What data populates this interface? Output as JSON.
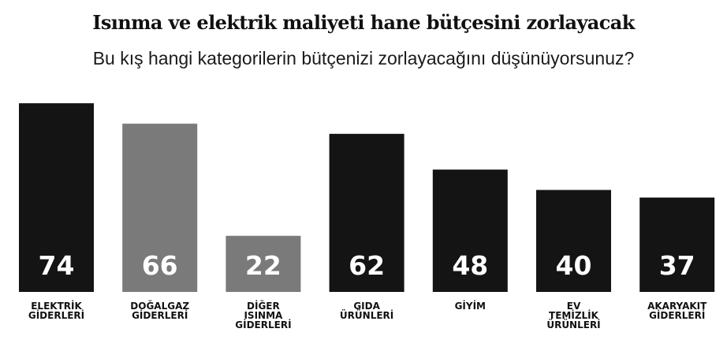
{
  "chart_data": {
    "type": "bar",
    "title": "Isınma ve elektrik maliyeti hane bütçesini zorlayacak",
    "subtitle": "Bu kış hangi kategorilerin bütçenizi zorlayacağını düşünüyorsunuz?",
    "categories": [
      [
        "ELEKTRİK",
        "GİDERLERİ"
      ],
      [
        "DOĞALGAZ",
        "GİDERLERİ"
      ],
      [
        "DİĞER",
        "ISINMA",
        "GİDERLERİ"
      ],
      [
        "GIDA",
        "ÜRÜNLERİ"
      ],
      [
        "GİYİM"
      ],
      [
        "EV",
        "TEMİZLİK",
        "ÜRÜNLERİ"
      ],
      [
        "AKARYAKIT",
        "GİDERLERİ"
      ]
    ],
    "values": [
      74,
      66,
      22,
      62,
      48,
      40,
      37
    ],
    "bar_colors": [
      "#141414",
      "#7a7a7a",
      "#7a7a7a",
      "#141414",
      "#141414",
      "#141414",
      "#141414"
    ],
    "value_label_color": "#ffffff",
    "ylim": [
      0,
      80
    ],
    "grid": false,
    "legend": "none"
  }
}
